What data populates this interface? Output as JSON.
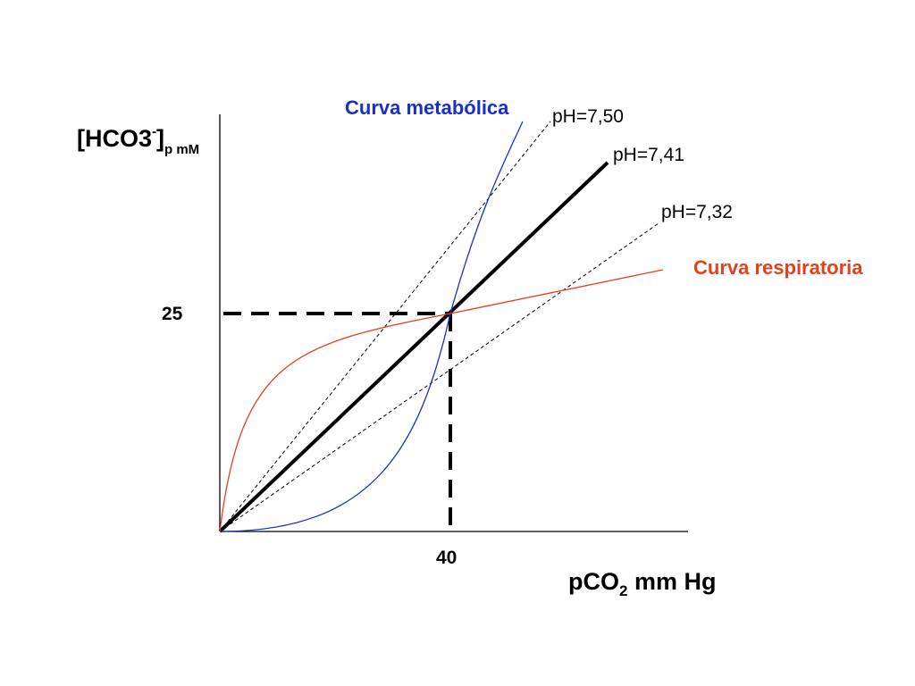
{
  "diagram": {
    "y_axis": {
      "label_main": "[HCO3",
      "label_sup": "-",
      "label_close": "]",
      "label_sub": "p mM"
    },
    "x_axis": {
      "label_main": "pCO",
      "label_sub": "2",
      "label_rest": " mm Hg"
    },
    "ticks": {
      "y_value": "25",
      "x_value": "40"
    },
    "curves": {
      "metabolic": {
        "label": "Curva metabólica",
        "color": "#1a2ec9"
      },
      "respiratory": {
        "label": "Curva respiratoria",
        "color": "#e5401a"
      }
    },
    "isopleths": [
      {
        "label": "pH=7,50",
        "style": "dashed"
      },
      {
        "label": "pH=7,41",
        "style": "solid-bold"
      },
      {
        "label": "pH=7,32",
        "style": "dashed"
      }
    ],
    "reference_color": "#000000"
  }
}
